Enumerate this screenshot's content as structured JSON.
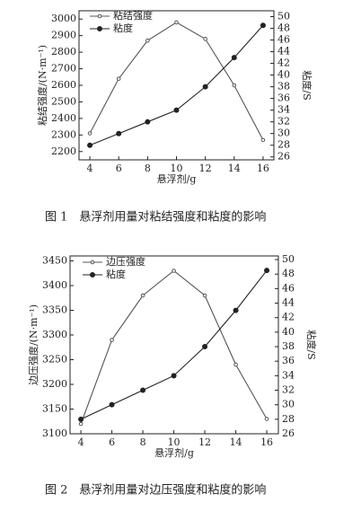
{
  "chart_data": [
    {
      "type": "line",
      "caption": "图 1　悬浮剂用量对粘结强度和粘度的影响",
      "xlabel": "悬浮剂/g",
      "ylabel": "粘结强度/(N·m⁻¹)",
      "y2label": "粘度/S",
      "x": [
        4,
        6,
        8,
        10,
        12,
        14,
        16
      ],
      "xlim": [
        3.25,
        16.75
      ],
      "xticks": [
        4,
        6,
        8,
        10,
        12,
        14,
        16
      ],
      "ylim": [
        2150,
        3050
      ],
      "yticks": [
        2200,
        2300,
        2400,
        2500,
        2600,
        2700,
        2800,
        2900,
        3000
      ],
      "y2lim": [
        25.5,
        51
      ],
      "y2ticks": [
        26,
        28,
        30,
        32,
        34,
        36,
        38,
        40,
        42,
        44,
        46,
        48,
        50
      ],
      "legend": "upper left",
      "series": [
        {
          "name": "粘结强度",
          "color": "#555",
          "marker": "open",
          "values": [
            2310,
            2640,
            2870,
            2980,
            2880,
            2600,
            2270
          ]
        },
        {
          "name": "粘度",
          "color": "#222",
          "marker": "filled",
          "axis": "y2",
          "values": [
            28,
            30,
            32,
            34,
            38,
            43,
            48.5
          ]
        }
      ]
    },
    {
      "type": "line",
      "caption": "图 2　悬浮剂用量对边压强度和粘度的影响",
      "xlabel": "悬浮剂/g",
      "ylabel": "边压强度/(N·m⁻¹)",
      "y2label": "粘度/S",
      "x": [
        4,
        6,
        8,
        10,
        12,
        14,
        16
      ],
      "xlim": [
        3.3,
        16.75
      ],
      "xticks": [
        4,
        6,
        8,
        10,
        12,
        14,
        16
      ],
      "ylim": [
        3100,
        3460
      ],
      "yticks": [
        3100,
        3150,
        3200,
        3250,
        3300,
        3350,
        3400,
        3450
      ],
      "y2lim": [
        26,
        50.5
      ],
      "y2ticks": [
        26,
        28,
        30,
        32,
        34,
        36,
        38,
        40,
        42,
        44,
        46,
        48,
        50
      ],
      "legend": "upper left",
      "series": [
        {
          "name": "边压强度",
          "color": "#555",
          "marker": "open",
          "values": [
            3120,
            3290,
            3380,
            3430,
            3380,
            3240,
            3130
          ]
        },
        {
          "name": "粘度",
          "color": "#222",
          "marker": "filled",
          "axis": "y2",
          "values": [
            28,
            30,
            32,
            34,
            38,
            43,
            48.5
          ]
        }
      ]
    }
  ]
}
